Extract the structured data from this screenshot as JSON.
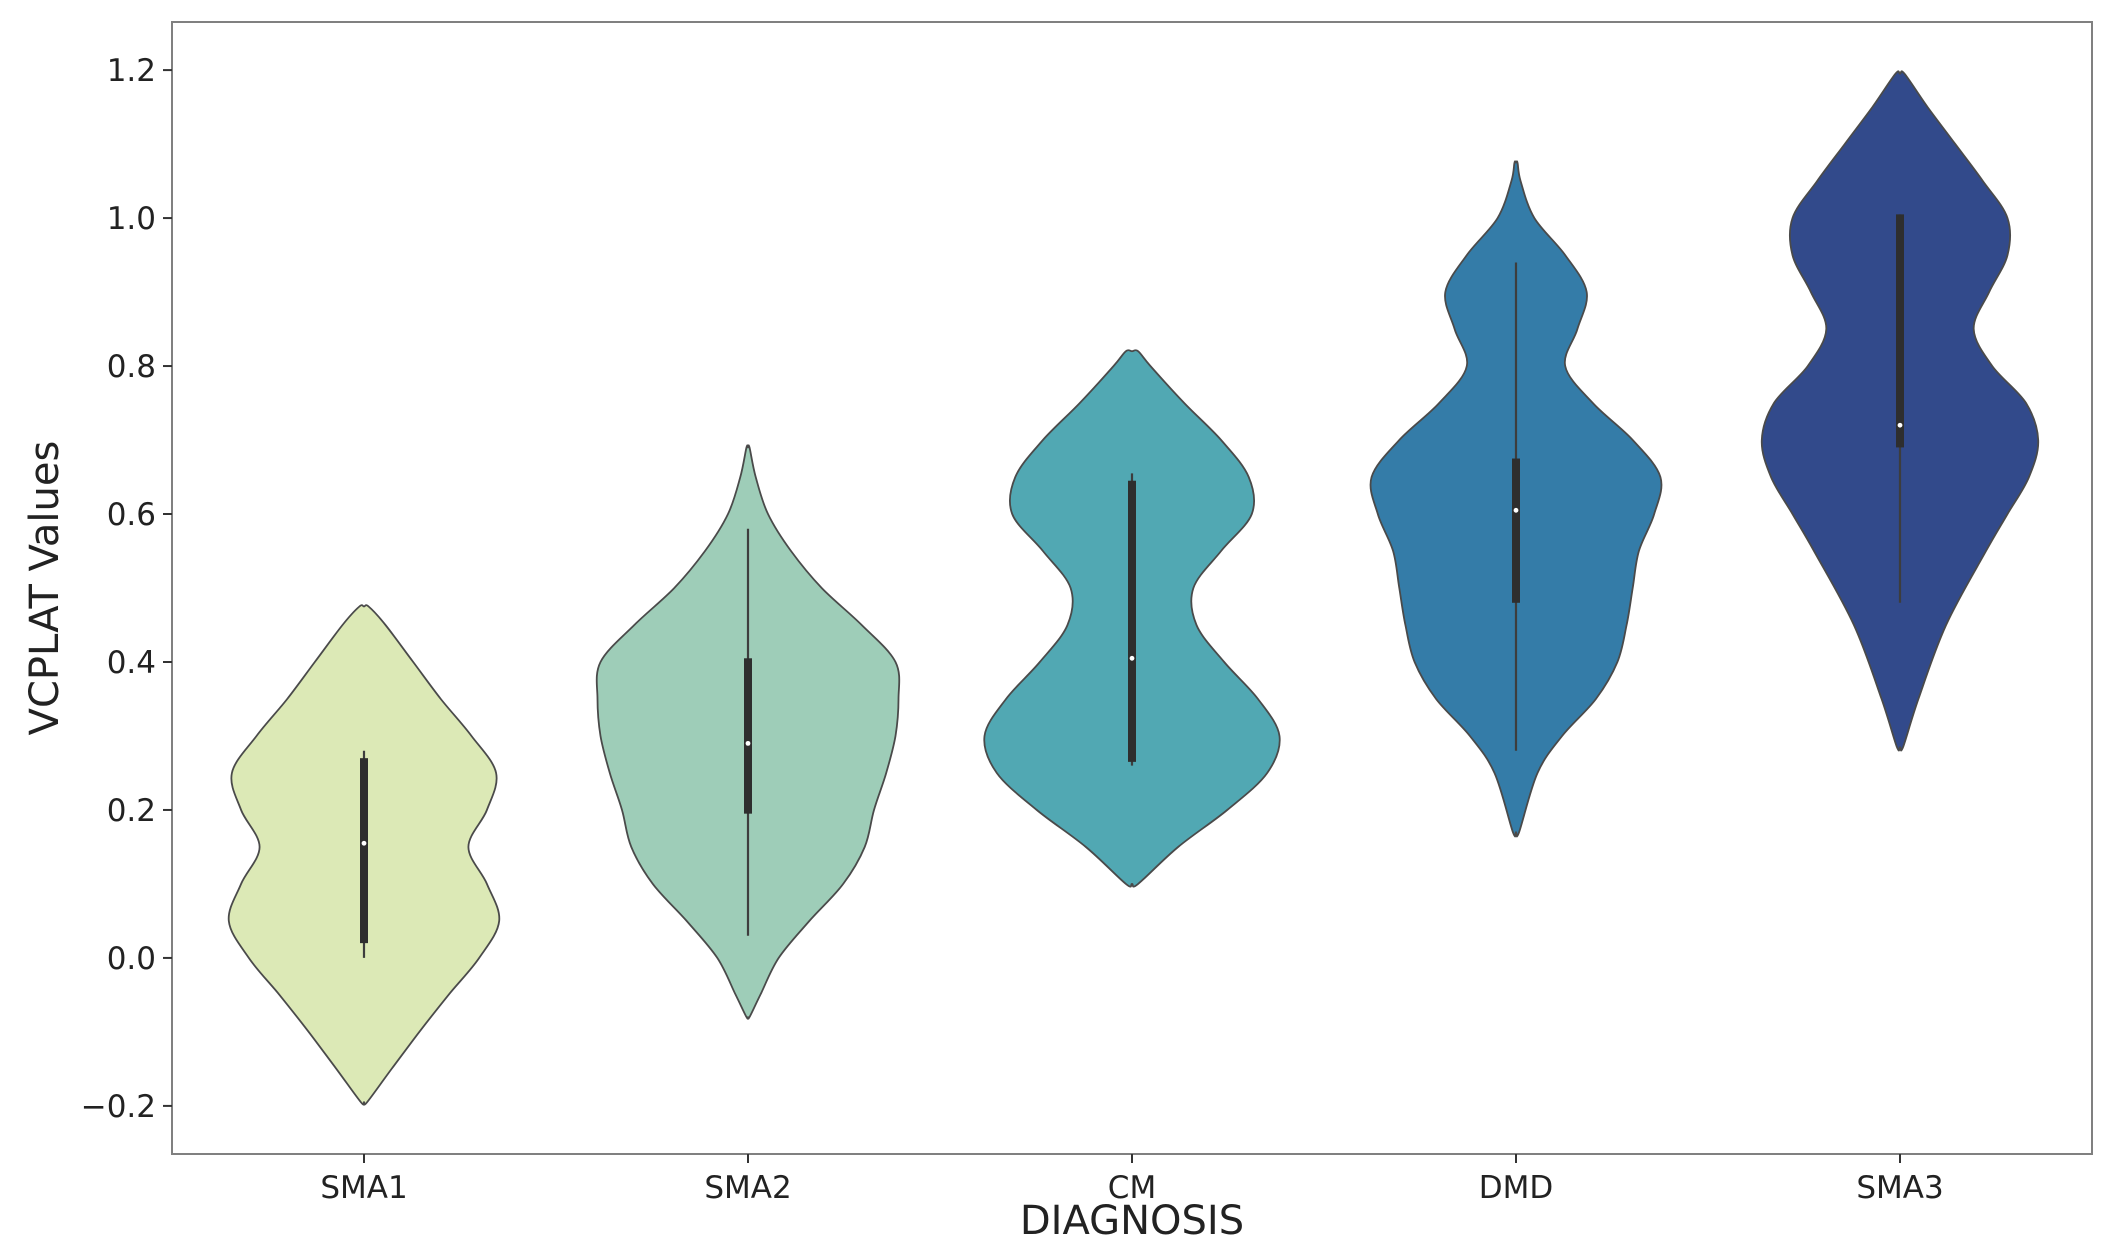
{
  "chart_data": {
    "type": "violin",
    "title": "",
    "xlabel": "DIAGNOSIS",
    "ylabel": "VCPLAT Values",
    "ylim": [
      -0.265,
      1.265
    ],
    "yticks": [
      -0.2,
      0.0,
      0.2,
      0.4,
      0.6,
      0.8,
      1.0,
      1.2
    ],
    "ytick_labels": [
      "−0.2",
      "0.0",
      "0.2",
      "0.4",
      "0.6",
      "0.8",
      "1.0",
      "1.2"
    ],
    "grid": false,
    "legend": "none",
    "categories": [
      "SMA1",
      "SMA2",
      "CM",
      "DMD",
      "SMA3"
    ],
    "colors": [
      "#dce9b6",
      "#9ecdb8",
      "#51a8b3",
      "#347ca8",
      "#324a8b"
    ],
    "violins": [
      {
        "name": "SMA1",
        "min": -0.195,
        "max": 0.475,
        "box": {
          "whisker_low": 0.0,
          "q1": 0.02,
          "median": 0.155,
          "q3": 0.27,
          "whisker_high": 0.28
        },
        "density": [
          [
            -0.195,
            0.02
          ],
          [
            -0.15,
            0.18
          ],
          [
            -0.1,
            0.36
          ],
          [
            -0.05,
            0.55
          ],
          [
            0.0,
            0.75
          ],
          [
            0.05,
            0.88
          ],
          [
            0.1,
            0.8
          ],
          [
            0.15,
            0.68
          ],
          [
            0.2,
            0.8
          ],
          [
            0.25,
            0.86
          ],
          [
            0.3,
            0.7
          ],
          [
            0.35,
            0.5
          ],
          [
            0.4,
            0.32
          ],
          [
            0.45,
            0.14
          ],
          [
            0.475,
            0.03
          ]
        ]
      },
      {
        "name": "SMA2",
        "min": -0.08,
        "max": 0.69,
        "box": {
          "whisker_low": 0.03,
          "q1": 0.195,
          "median": 0.29,
          "q3": 0.405,
          "whisker_high": 0.58
        },
        "density": [
          [
            -0.08,
            0.01
          ],
          [
            -0.05,
            0.08
          ],
          [
            0.0,
            0.2
          ],
          [
            0.05,
            0.4
          ],
          [
            0.1,
            0.62
          ],
          [
            0.15,
            0.76
          ],
          [
            0.2,
            0.82
          ],
          [
            0.25,
            0.9
          ],
          [
            0.3,
            0.96
          ],
          [
            0.35,
            0.98
          ],
          [
            0.4,
            0.96
          ],
          [
            0.45,
            0.74
          ],
          [
            0.5,
            0.48
          ],
          [
            0.55,
            0.28
          ],
          [
            0.6,
            0.13
          ],
          [
            0.65,
            0.05
          ],
          [
            0.69,
            0.01
          ]
        ]
      },
      {
        "name": "CM",
        "min": 0.1,
        "max": 0.82,
        "box": {
          "whisker_low": 0.26,
          "q1": 0.265,
          "median": 0.405,
          "q3": 0.645,
          "whisker_high": 0.655
        },
        "density": [
          [
            0.1,
            0.04
          ],
          [
            0.15,
            0.3
          ],
          [
            0.2,
            0.62
          ],
          [
            0.25,
            0.88
          ],
          [
            0.3,
            0.96
          ],
          [
            0.35,
            0.82
          ],
          [
            0.4,
            0.6
          ],
          [
            0.45,
            0.42
          ],
          [
            0.5,
            0.4
          ],
          [
            0.55,
            0.58
          ],
          [
            0.6,
            0.78
          ],
          [
            0.65,
            0.76
          ],
          [
            0.7,
            0.58
          ],
          [
            0.75,
            0.34
          ],
          [
            0.8,
            0.12
          ],
          [
            0.82,
            0.04
          ]
        ]
      },
      {
        "name": "DMD",
        "min": 0.17,
        "max": 1.075,
        "box": {
          "whisker_low": 0.28,
          "q1": 0.48,
          "median": 0.605,
          "q3": 0.675,
          "whisker_high": 0.94
        },
        "density": [
          [
            0.17,
            0.02
          ],
          [
            0.25,
            0.14
          ],
          [
            0.3,
            0.3
          ],
          [
            0.35,
            0.52
          ],
          [
            0.4,
            0.66
          ],
          [
            0.45,
            0.72
          ],
          [
            0.5,
            0.76
          ],
          [
            0.55,
            0.8
          ],
          [
            0.6,
            0.9
          ],
          [
            0.65,
            0.94
          ],
          [
            0.7,
            0.76
          ],
          [
            0.75,
            0.5
          ],
          [
            0.8,
            0.32
          ],
          [
            0.85,
            0.4
          ],
          [
            0.9,
            0.46
          ],
          [
            0.95,
            0.32
          ],
          [
            1.0,
            0.12
          ],
          [
            1.05,
            0.03
          ],
          [
            1.075,
            0.01
          ]
        ]
      },
      {
        "name": "SMA3",
        "min": 0.285,
        "max": 1.195,
        "box": {
          "whisker_low": 0.48,
          "q1": 0.69,
          "median": 0.72,
          "q3": 1.005,
          "whisker_high": 1.005
        },
        "density": [
          [
            0.285,
            0.02
          ],
          [
            0.35,
            0.12
          ],
          [
            0.45,
            0.3
          ],
          [
            0.55,
            0.56
          ],
          [
            0.6,
            0.7
          ],
          [
            0.65,
            0.84
          ],
          [
            0.7,
            0.9
          ],
          [
            0.75,
            0.82
          ],
          [
            0.8,
            0.6
          ],
          [
            0.85,
            0.48
          ],
          [
            0.9,
            0.58
          ],
          [
            0.95,
            0.7
          ],
          [
            1.0,
            0.7
          ],
          [
            1.05,
            0.54
          ],
          [
            1.1,
            0.36
          ],
          [
            1.15,
            0.18
          ],
          [
            1.195,
            0.03
          ]
        ]
      }
    ]
  }
}
